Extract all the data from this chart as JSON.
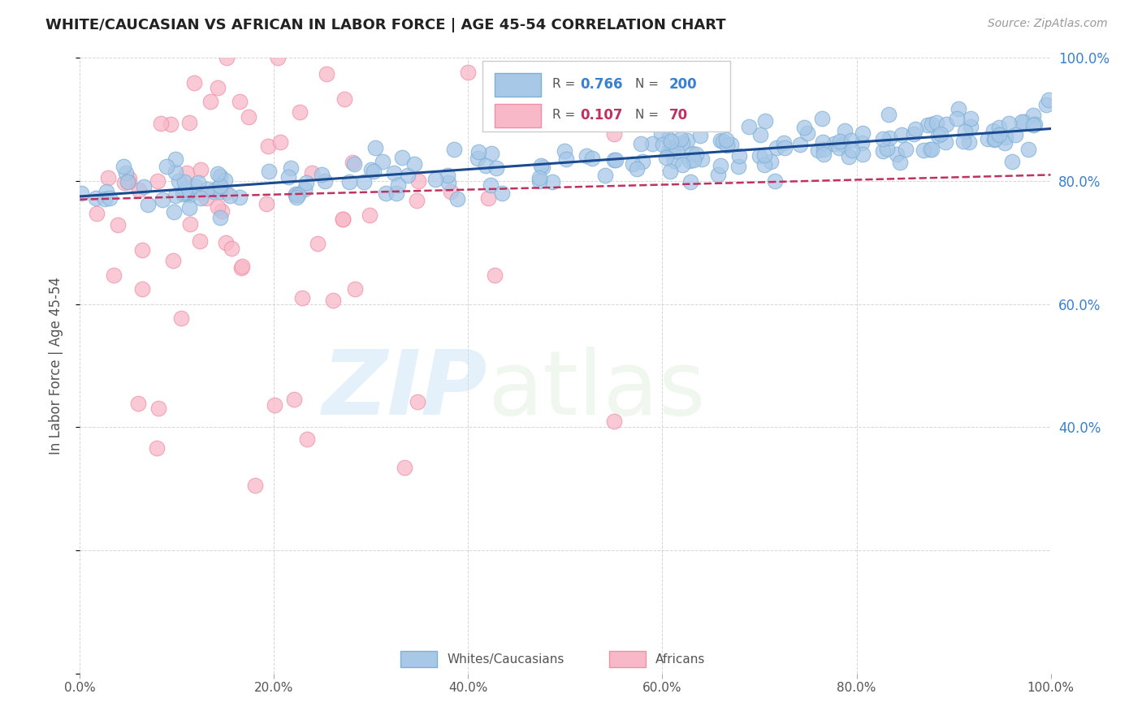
{
  "title": "WHITE/CAUCASIAN VS AFRICAN IN LABOR FORCE | AGE 45-54 CORRELATION CHART",
  "source": "Source: ZipAtlas.com",
  "ylabel": "In Labor Force | Age 45-54",
  "xlim": [
    0,
    1
  ],
  "ylim": [
    0,
    1
  ],
  "blue_R": 0.766,
  "blue_N": 200,
  "pink_R": 0.107,
  "pink_N": 70,
  "blue_color": "#a8c8e8",
  "blue_edge_color": "#7db0d5",
  "pink_color": "#f8b8c8",
  "pink_edge_color": "#f090a8",
  "blue_line_color": "#1a4a90",
  "pink_line_color": "#c03060",
  "background_color": "#ffffff",
  "grid_color": "#cccccc",
  "right_tick_color": "#3a80d0",
  "blue_trend_x0": 0.0,
  "blue_trend_y0": 0.775,
  "blue_trend_x1": 1.0,
  "blue_trend_y1": 0.885,
  "pink_trend_x0": 0.0,
  "pink_trend_y0": 0.77,
  "pink_trend_x1": 1.0,
  "pink_trend_y1": 0.81
}
